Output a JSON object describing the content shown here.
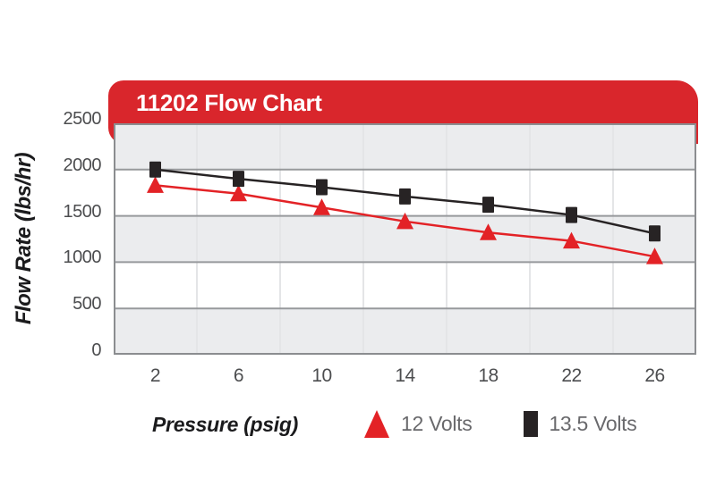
{
  "title": "11202 Flow Chart",
  "colors": {
    "banner_red": "#d9262c",
    "series_red": "#e32226",
    "series_black": "#272324",
    "band_gray": "#ebecee",
    "band_white": "#ffffff",
    "hgrid": "#97999c",
    "vgrid": "#e4e5e7",
    "plot_border": "#8b8d90",
    "tick_text": "#4c4d4f",
    "legend_text": "#69696c",
    "title_text": "#ffffff"
  },
  "chart_data": {
    "type": "line",
    "title": "11202 Flow Chart",
    "xlabel": "Pressure (psig)",
    "ylabel": "Flow Rate (lbs/hr)",
    "x": [
      2,
      6,
      10,
      14,
      18,
      22,
      26
    ],
    "y_ticks": [
      2500,
      2000,
      1500,
      1000,
      500,
      0
    ],
    "ylim": [
      0,
      2500
    ],
    "grid": "horizontal-bands-and-column-separators",
    "legend_position": "bottom",
    "series": [
      {
        "name": "12 Volts",
        "marker": "triangle",
        "color": "#e32226",
        "values": [
          1830,
          1740,
          1590,
          1440,
          1320,
          1230,
          1060
        ]
      },
      {
        "name": "13.5 Volts",
        "marker": "square",
        "color": "#272324",
        "values": [
          2000,
          1900,
          1810,
          1710,
          1620,
          1510,
          1310
        ]
      }
    ]
  }
}
